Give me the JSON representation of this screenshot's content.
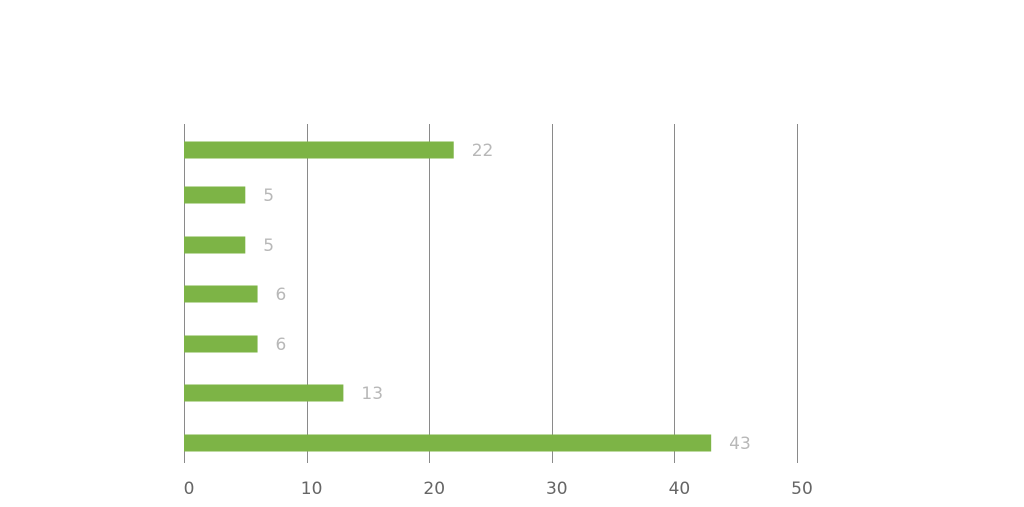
{
  "chart_data": {
    "type": "bar",
    "orientation": "horizontal",
    "values": [
      22,
      5,
      5,
      6,
      6,
      13,
      43
    ],
    "data_labels": [
      "22",
      "5",
      "5",
      "6",
      "6",
      "13",
      "43"
    ],
    "xlim": [
      0,
      50
    ],
    "x_ticks": [
      0,
      10,
      20,
      30,
      40,
      50
    ],
    "x_tick_labels": [
      "0",
      "10",
      "20",
      "30",
      "40",
      "50"
    ],
    "grid": "vertical",
    "legend": "none"
  },
  "colors": {
    "bar": "#7db446",
    "grid": "#8a8a8a",
    "tick_label": "#666666",
    "data_label": "#b8b8b8"
  }
}
